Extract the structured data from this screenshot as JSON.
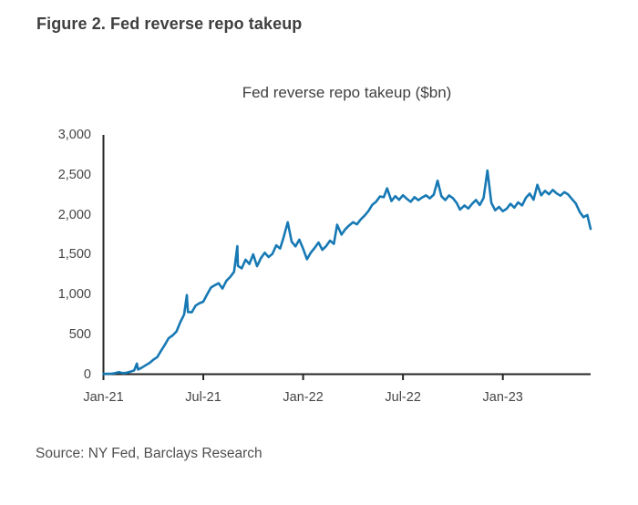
{
  "figure_title": "Figure 2. Fed reverse repo takeup",
  "source": "Source: NY Fed, Barclays Research",
  "colors": {
    "line": "#1779b4",
    "axis": "#262626",
    "title_text": "#3f3f3f",
    "tick_text": "#454545"
  },
  "chart_data": {
    "type": "line",
    "title": "Fed reverse repo takeup ($bn)",
    "xlabel": "",
    "ylabel": "",
    "ylim": [
      0,
      3000
    ],
    "grid": false,
    "legend_position": "none",
    "y_ticks": [
      0,
      500,
      1000,
      1500,
      2000,
      2500,
      3000
    ],
    "y_tick_labels": [
      "0",
      "500",
      "1,000",
      "1,500",
      "2,000",
      "2,500",
      "3,000"
    ],
    "x_ticks": [
      {
        "date": "2021-01-29",
        "label": "Jan-21"
      },
      {
        "date": "2021-07-30",
        "label": "Jul-21"
      },
      {
        "date": "2022-01-28",
        "label": "Jan-22"
      },
      {
        "date": "2022-07-29",
        "label": "Jul-22"
      },
      {
        "date": "2023-01-27",
        "label": "Jan-23"
      }
    ],
    "series": [
      {
        "name": "Fed reverse repo takeup ($bn)",
        "points": [
          [
            "2021-01-29",
            3
          ],
          [
            "2021-02-05",
            4
          ],
          [
            "2021-02-12",
            6
          ],
          [
            "2021-02-19",
            12
          ],
          [
            "2021-02-26",
            26
          ],
          [
            "2021-03-05",
            14
          ],
          [
            "2021-03-12",
            18
          ],
          [
            "2021-03-19",
            32
          ],
          [
            "2021-03-26",
            47
          ],
          [
            "2021-03-31",
            134
          ],
          [
            "2021-04-02",
            58
          ],
          [
            "2021-04-09",
            82
          ],
          [
            "2021-04-16",
            112
          ],
          [
            "2021-04-23",
            142
          ],
          [
            "2021-04-30",
            182
          ],
          [
            "2021-05-07",
            214
          ],
          [
            "2021-05-14",
            294
          ],
          [
            "2021-05-21",
            369
          ],
          [
            "2021-05-28",
            453
          ],
          [
            "2021-06-04",
            486
          ],
          [
            "2021-06-11",
            535
          ],
          [
            "2021-06-18",
            651
          ],
          [
            "2021-06-25",
            747
          ],
          [
            "2021-06-30",
            992
          ],
          [
            "2021-07-02",
            780
          ],
          [
            "2021-07-09",
            776
          ],
          [
            "2021-07-16",
            860
          ],
          [
            "2021-07-23",
            890
          ],
          [
            "2021-07-30",
            909
          ],
          [
            "2021-08-06",
            1001
          ],
          [
            "2021-08-13",
            1087
          ],
          [
            "2021-08-20",
            1116
          ],
          [
            "2021-08-27",
            1141
          ],
          [
            "2021-09-03",
            1073
          ],
          [
            "2021-09-10",
            1169
          ],
          [
            "2021-09-17",
            1218
          ],
          [
            "2021-09-24",
            1283
          ],
          [
            "2021-09-30",
            1605
          ],
          [
            "2021-10-01",
            1358
          ],
          [
            "2021-10-08",
            1327
          ],
          [
            "2021-10-15",
            1436
          ],
          [
            "2021-10-22",
            1382
          ],
          [
            "2021-10-29",
            1503
          ],
          [
            "2021-11-05",
            1354
          ],
          [
            "2021-11-12",
            1454
          ],
          [
            "2021-11-19",
            1522
          ],
          [
            "2021-11-26",
            1469
          ],
          [
            "2021-12-03",
            1508
          ],
          [
            "2021-12-10",
            1616
          ],
          [
            "2021-12-17",
            1575
          ],
          [
            "2021-12-23",
            1705
          ],
          [
            "2021-12-31",
            1905
          ],
          [
            "2022-01-07",
            1662
          ],
          [
            "2022-01-14",
            1602
          ],
          [
            "2022-01-21",
            1687
          ],
          [
            "2022-01-28",
            1572
          ],
          [
            "2022-02-04",
            1441
          ],
          [
            "2022-02-11",
            1523
          ],
          [
            "2022-02-18",
            1583
          ],
          [
            "2022-02-25",
            1652
          ],
          [
            "2022-03-04",
            1559
          ],
          [
            "2022-03-11",
            1607
          ],
          [
            "2022-03-18",
            1674
          ],
          [
            "2022-03-25",
            1634
          ],
          [
            "2022-03-31",
            1874
          ],
          [
            "2022-04-08",
            1750
          ],
          [
            "2022-04-15",
            1818
          ],
          [
            "2022-04-22",
            1866
          ],
          [
            "2022-04-29",
            1906
          ],
          [
            "2022-05-06",
            1879
          ],
          [
            "2022-05-13",
            1941
          ],
          [
            "2022-05-20",
            1988
          ],
          [
            "2022-05-27",
            2045
          ],
          [
            "2022-06-03",
            2123
          ],
          [
            "2022-06-10",
            2163
          ],
          [
            "2022-06-17",
            2229
          ],
          [
            "2022-06-24",
            2219
          ],
          [
            "2022-06-30",
            2330
          ],
          [
            "2022-07-08",
            2170
          ],
          [
            "2022-07-15",
            2232
          ],
          [
            "2022-07-22",
            2186
          ],
          [
            "2022-07-29",
            2244
          ],
          [
            "2022-08-05",
            2199
          ],
          [
            "2022-08-12",
            2161
          ],
          [
            "2022-08-19",
            2220
          ],
          [
            "2022-08-26",
            2182
          ],
          [
            "2022-09-02",
            2216
          ],
          [
            "2022-09-09",
            2242
          ],
          [
            "2022-09-16",
            2205
          ],
          [
            "2022-09-23",
            2251
          ],
          [
            "2022-09-30",
            2426
          ],
          [
            "2022-10-07",
            2232
          ],
          [
            "2022-10-14",
            2183
          ],
          [
            "2022-10-21",
            2241
          ],
          [
            "2022-10-28",
            2208
          ],
          [
            "2022-11-04",
            2146
          ],
          [
            "2022-11-10",
            2064
          ],
          [
            "2022-11-18",
            2115
          ],
          [
            "2022-11-25",
            2077
          ],
          [
            "2022-12-02",
            2136
          ],
          [
            "2022-12-09",
            2184
          ],
          [
            "2022-12-16",
            2121
          ],
          [
            "2022-12-23",
            2210
          ],
          [
            "2022-12-30",
            2554
          ],
          [
            "2023-01-06",
            2149
          ],
          [
            "2023-01-13",
            2055
          ],
          [
            "2023-01-20",
            2097
          ],
          [
            "2023-01-27",
            2043
          ],
          [
            "2023-02-03",
            2074
          ],
          [
            "2023-02-10",
            2136
          ],
          [
            "2023-02-17",
            2088
          ],
          [
            "2023-02-24",
            2154
          ],
          [
            "2023-03-03",
            2115
          ],
          [
            "2023-03-10",
            2211
          ],
          [
            "2023-03-17",
            2264
          ],
          [
            "2023-03-24",
            2188
          ],
          [
            "2023-03-31",
            2375
          ],
          [
            "2023-04-07",
            2242
          ],
          [
            "2023-04-14",
            2298
          ],
          [
            "2023-04-21",
            2256
          ],
          [
            "2023-04-28",
            2310
          ],
          [
            "2023-05-05",
            2267
          ],
          [
            "2023-05-12",
            2238
          ],
          [
            "2023-05-19",
            2282
          ],
          [
            "2023-05-26",
            2254
          ],
          [
            "2023-06-02",
            2196
          ],
          [
            "2023-06-09",
            2142
          ],
          [
            "2023-06-16",
            2035
          ],
          [
            "2023-06-23",
            1968
          ],
          [
            "2023-06-30",
            1995
          ],
          [
            "2023-07-06",
            1822
          ]
        ]
      }
    ]
  }
}
